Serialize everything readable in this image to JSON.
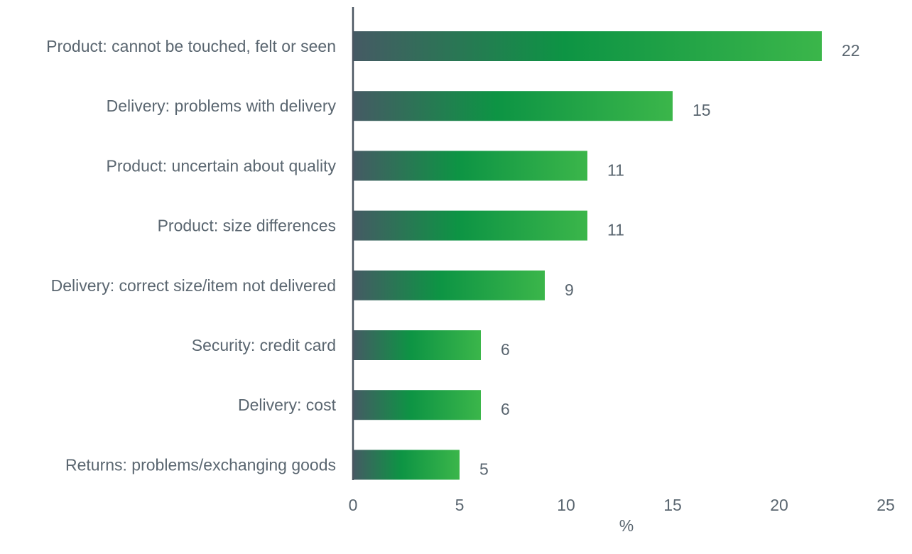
{
  "chart_data": {
    "type": "bar",
    "orientation": "horizontal",
    "categories": [
      "Product: cannot be touched, felt or seen",
      "Delivery: problems with delivery",
      "Product: uncertain about quality",
      "Product: size differences",
      "Delivery: correct size/item not delivered",
      "Security: credit card",
      "Delivery: cost",
      "Returns: problems/exchanging goods"
    ],
    "values": [
      22,
      15,
      11,
      11,
      9,
      6,
      6,
      5
    ],
    "value_labels": [
      "22",
      "15",
      "11",
      "11",
      "9",
      "6",
      "6",
      "5"
    ],
    "xlabel": "%",
    "ylabel": "",
    "xlim": [
      0,
      25
    ],
    "xticks": [
      "0",
      "5",
      "10",
      "15",
      "20",
      "25"
    ],
    "grid": false,
    "colors": {
      "bar_start": "#455a64",
      "bar_mid": "#0d9444",
      "bar_end": "#3bb64a",
      "axis": "#4a5560",
      "text": "#5a6670"
    }
  }
}
